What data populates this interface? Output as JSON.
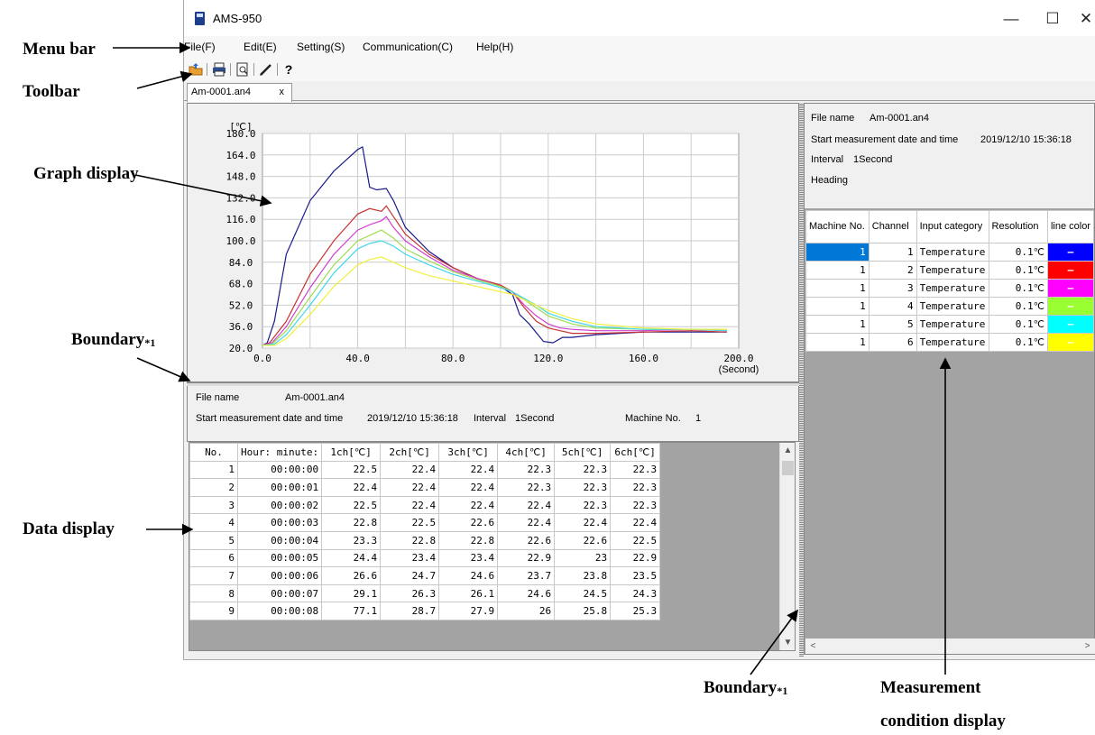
{
  "annotations": {
    "menu_bar": "Menu bar",
    "toolbar": "Toolbar",
    "graph_display": "Graph display",
    "boundary_left": "Boundary",
    "boundary_left_sub": "*1",
    "data_display": "Data display",
    "boundary_bottom": "Boundary",
    "boundary_bottom_sub": "*1",
    "measurement_line1": "Measurement",
    "measurement_line2": "condition display"
  },
  "window": {
    "title": "AMS-950",
    "minimize": "—",
    "maximize": "☐",
    "close": "✕"
  },
  "menu": {
    "items": [
      {
        "label": "File(F)"
      },
      {
        "label": "Edit(E)"
      },
      {
        "label": "Setting(S)"
      },
      {
        "label": "Communication(C)"
      },
      {
        "label": "Help(H)"
      }
    ]
  },
  "toolbar": {
    "icons": [
      "open-folder-icon",
      "print-icon",
      "preview-icon",
      "pen-icon",
      "help-icon"
    ],
    "help_label": "?"
  },
  "tab": {
    "label": "Am-0001.an4",
    "close": "x"
  },
  "chart_data": {
    "type": "line",
    "ylabel": "[℃]",
    "xlabel": "(Second)",
    "xlim": [
      0,
      200
    ],
    "ylim": [
      20,
      180
    ],
    "x_ticks": [
      "0.0",
      "40.0",
      "80.0",
      "120.0",
      "160.0",
      "200.0"
    ],
    "y_ticks": [
      "20.0",
      "36.0",
      "52.0",
      "68.0",
      "84.0",
      "100.0",
      "116.0",
      "132.0",
      "148.0",
      "164.0",
      "180.0"
    ],
    "grid": true,
    "series": [
      {
        "color": "#1a1a8c",
        "x": [
          0,
          2,
          5,
          10,
          20,
          30,
          40,
          42,
          45,
          48,
          52,
          55,
          60,
          70,
          80,
          90,
          100,
          105,
          108,
          112,
          118,
          122,
          126,
          130,
          140,
          160,
          180,
          195
        ],
        "y": [
          22,
          24,
          40,
          90,
          130,
          152,
          168,
          170,
          140,
          138,
          139,
          130,
          110,
          92,
          80,
          72,
          66,
          60,
          45,
          38,
          25,
          24,
          28,
          28,
          30,
          32,
          32,
          32
        ]
      },
      {
        "color": "#c83232",
        "x": [
          0,
          3,
          10,
          20,
          30,
          40,
          45,
          50,
          52,
          55,
          60,
          70,
          80,
          90,
          100,
          105,
          110,
          115,
          120,
          125,
          130,
          140,
          160,
          180,
          195
        ],
        "y": [
          22,
          24,
          40,
          75,
          100,
          120,
          124,
          122,
          126,
          118,
          105,
          90,
          80,
          72,
          67,
          62,
          50,
          40,
          35,
          33,
          31,
          31,
          32,
          33,
          32
        ]
      },
      {
        "color": "#d040d0",
        "x": [
          0,
          4,
          10,
          20,
          30,
          40,
          45,
          50,
          52,
          55,
          60,
          70,
          80,
          90,
          100,
          105,
          110,
          115,
          120,
          125,
          130,
          140,
          160,
          180,
          195
        ],
        "y": [
          22,
          24,
          36,
          65,
          90,
          108,
          112,
          115,
          118,
          110,
          100,
          88,
          78,
          72,
          66,
          62,
          52,
          44,
          38,
          35,
          34,
          33,
          33,
          34,
          33
        ]
      },
      {
        "color": "#a0dc50",
        "x": [
          0,
          4,
          10,
          20,
          30,
          40,
          45,
          50,
          55,
          60,
          70,
          80,
          90,
          100,
          105,
          110,
          115,
          120,
          130,
          140,
          160,
          180,
          195
        ],
        "y": [
          22,
          23,
          33,
          58,
          82,
          100,
          104,
          108,
          102,
          94,
          85,
          77,
          71,
          66,
          62,
          56,
          50,
          44,
          38,
          35,
          34,
          34,
          34
        ]
      },
      {
        "color": "#40d8e8",
        "x": [
          0,
          5,
          10,
          20,
          30,
          40,
          45,
          50,
          55,
          60,
          70,
          80,
          90,
          100,
          105,
          110,
          115,
          120,
          130,
          140,
          160,
          180,
          195
        ],
        "y": [
          22,
          23,
          30,
          52,
          76,
          94,
          98,
          100,
          96,
          90,
          82,
          75,
          70,
          65,
          62,
          57,
          52,
          46,
          40,
          36,
          34,
          34,
          33
        ]
      },
      {
        "color": "#f0f040",
        "x": [
          0,
          5,
          10,
          20,
          30,
          40,
          45,
          50,
          55,
          60,
          70,
          80,
          90,
          100,
          105,
          110,
          115,
          120,
          130,
          140,
          160,
          180,
          195
        ],
        "y": [
          22,
          22,
          27,
          45,
          66,
          82,
          86,
          88,
          84,
          80,
          74,
          70,
          66,
          62,
          60,
          56,
          52,
          48,
          42,
          38,
          35,
          34,
          34
        ]
      }
    ]
  },
  "info": {
    "file_name_label": "File name",
    "file_name_value": "Am-0001.an4",
    "start_label": "Start measurement date and time",
    "start_value": "2019/12/10 15:36:18",
    "interval_label": "Interval",
    "interval_value": "1Second",
    "machine_label": "Machine No.",
    "machine_value": "1"
  },
  "data_table": {
    "headers": [
      "No.",
      "Hour: minute:",
      "1ch[℃]",
      "2ch[℃]",
      "3ch[℃]",
      "4ch[℃]",
      "5ch[℃]",
      "6ch[℃]"
    ],
    "rows": [
      [
        "1",
        "00:00:00",
        "22.5",
        "22.4",
        "22.4",
        "22.3",
        "22.3",
        "22.3"
      ],
      [
        "2",
        "00:00:01",
        "22.4",
        "22.4",
        "22.4",
        "22.3",
        "22.3",
        "22.3"
      ],
      [
        "3",
        "00:00:02",
        "22.5",
        "22.4",
        "22.4",
        "22.4",
        "22.3",
        "22.3"
      ],
      [
        "4",
        "00:00:03",
        "22.8",
        "22.5",
        "22.6",
        "22.4",
        "22.4",
        "22.4"
      ],
      [
        "5",
        "00:00:04",
        "23.3",
        "22.8",
        "22.8",
        "22.6",
        "22.6",
        "22.5"
      ],
      [
        "6",
        "00:00:05",
        "24.4",
        "23.4",
        "23.4",
        "22.9",
        "23",
        "22.9"
      ],
      [
        "7",
        "00:00:06",
        "26.6",
        "24.7",
        "24.6",
        "23.7",
        "23.8",
        "23.5"
      ],
      [
        "8",
        "00:00:07",
        "29.1",
        "26.3",
        "26.1",
        "24.6",
        "24.5",
        "24.3"
      ],
      [
        "9",
        "00:00:08",
        "77.1",
        "28.7",
        "27.9",
        "26",
        "25.8",
        "25.3"
      ]
    ]
  },
  "scroll": {
    "up": "▲",
    "down": "▼",
    "left": "<",
    "right": ">"
  },
  "conditions": {
    "file_name_label": "File name",
    "file_name_value": "Am-0001.an4",
    "start_label": "Start measurement date and time",
    "start_value": "2019/12/10 15:36:18",
    "interval_label": "Interval",
    "interval_value": "1Second",
    "heading_label": "Heading",
    "headers": [
      "Machine No.",
      "Channel",
      "Input category",
      "Resolution",
      "line color"
    ],
    "rows": [
      {
        "machine": "1",
        "channel": "1",
        "category": "Temperature",
        "resolution": "0.1℃",
        "color": "#0000ff",
        "swatch": "—"
      },
      {
        "machine": "1",
        "channel": "2",
        "category": "Temperature",
        "resolution": "0.1℃",
        "color": "#ff0000",
        "swatch": "—"
      },
      {
        "machine": "1",
        "channel": "3",
        "category": "Temperature",
        "resolution": "0.1℃",
        "color": "#ff00ff",
        "swatch": "—"
      },
      {
        "machine": "1",
        "channel": "4",
        "category": "Temperature",
        "resolution": "0.1℃",
        "color": "#99ff33",
        "swatch": "—"
      },
      {
        "machine": "1",
        "channel": "5",
        "category": "Temperature",
        "resolution": "0.1℃",
        "color": "#00ffff",
        "swatch": "—"
      },
      {
        "machine": "1",
        "channel": "6",
        "category": "Temperature",
        "resolution": "0.1℃",
        "color": "#ffff00",
        "swatch": "—"
      }
    ]
  }
}
